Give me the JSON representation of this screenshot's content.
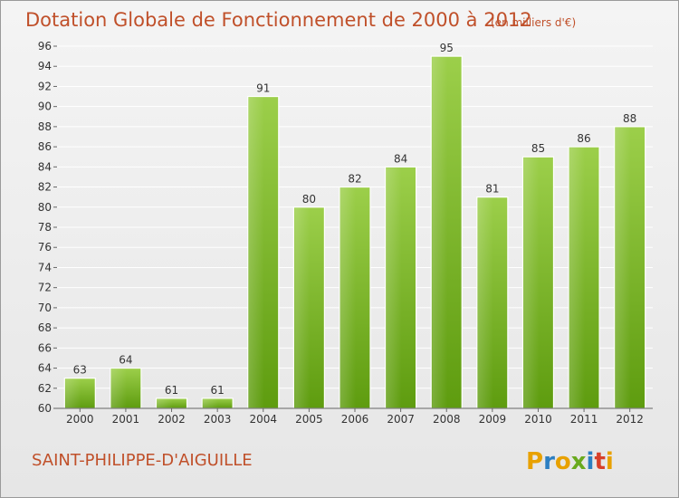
{
  "header": {
    "title": "Dotation Globale de Fonctionnement de 2000 à 2012",
    "unit": "(en milliers d'€)"
  },
  "footer": {
    "place_name": "SAINT-PHILIPPE-D'AIGUILLE",
    "logo_text": "Proxiti"
  },
  "colors": {
    "bar_light": "#9ccf4a",
    "bar_dark": "#5e9c0f",
    "title": "#c0502a",
    "grid": "#ffffff"
  },
  "chart_data": {
    "type": "bar",
    "title": "Dotation Globale de Fonctionnement de 2000 à 2012",
    "subtitle": "(en milliers d'€)",
    "xlabel": "",
    "ylabel": "",
    "categories": [
      "2000",
      "2001",
      "2002",
      "2003",
      "2004",
      "2005",
      "2006",
      "2007",
      "2008",
      "2009",
      "2010",
      "2011",
      "2012"
    ],
    "values": [
      63,
      64,
      61,
      61,
      91,
      80,
      82,
      84,
      95,
      81,
      85,
      86,
      88
    ],
    "ylim": [
      60,
      96
    ],
    "yticks": [
      60,
      62,
      64,
      66,
      68,
      70,
      72,
      74,
      76,
      78,
      80,
      82,
      84,
      86,
      88,
      90,
      92,
      94,
      96
    ],
    "grid": true,
    "legend": "none"
  }
}
